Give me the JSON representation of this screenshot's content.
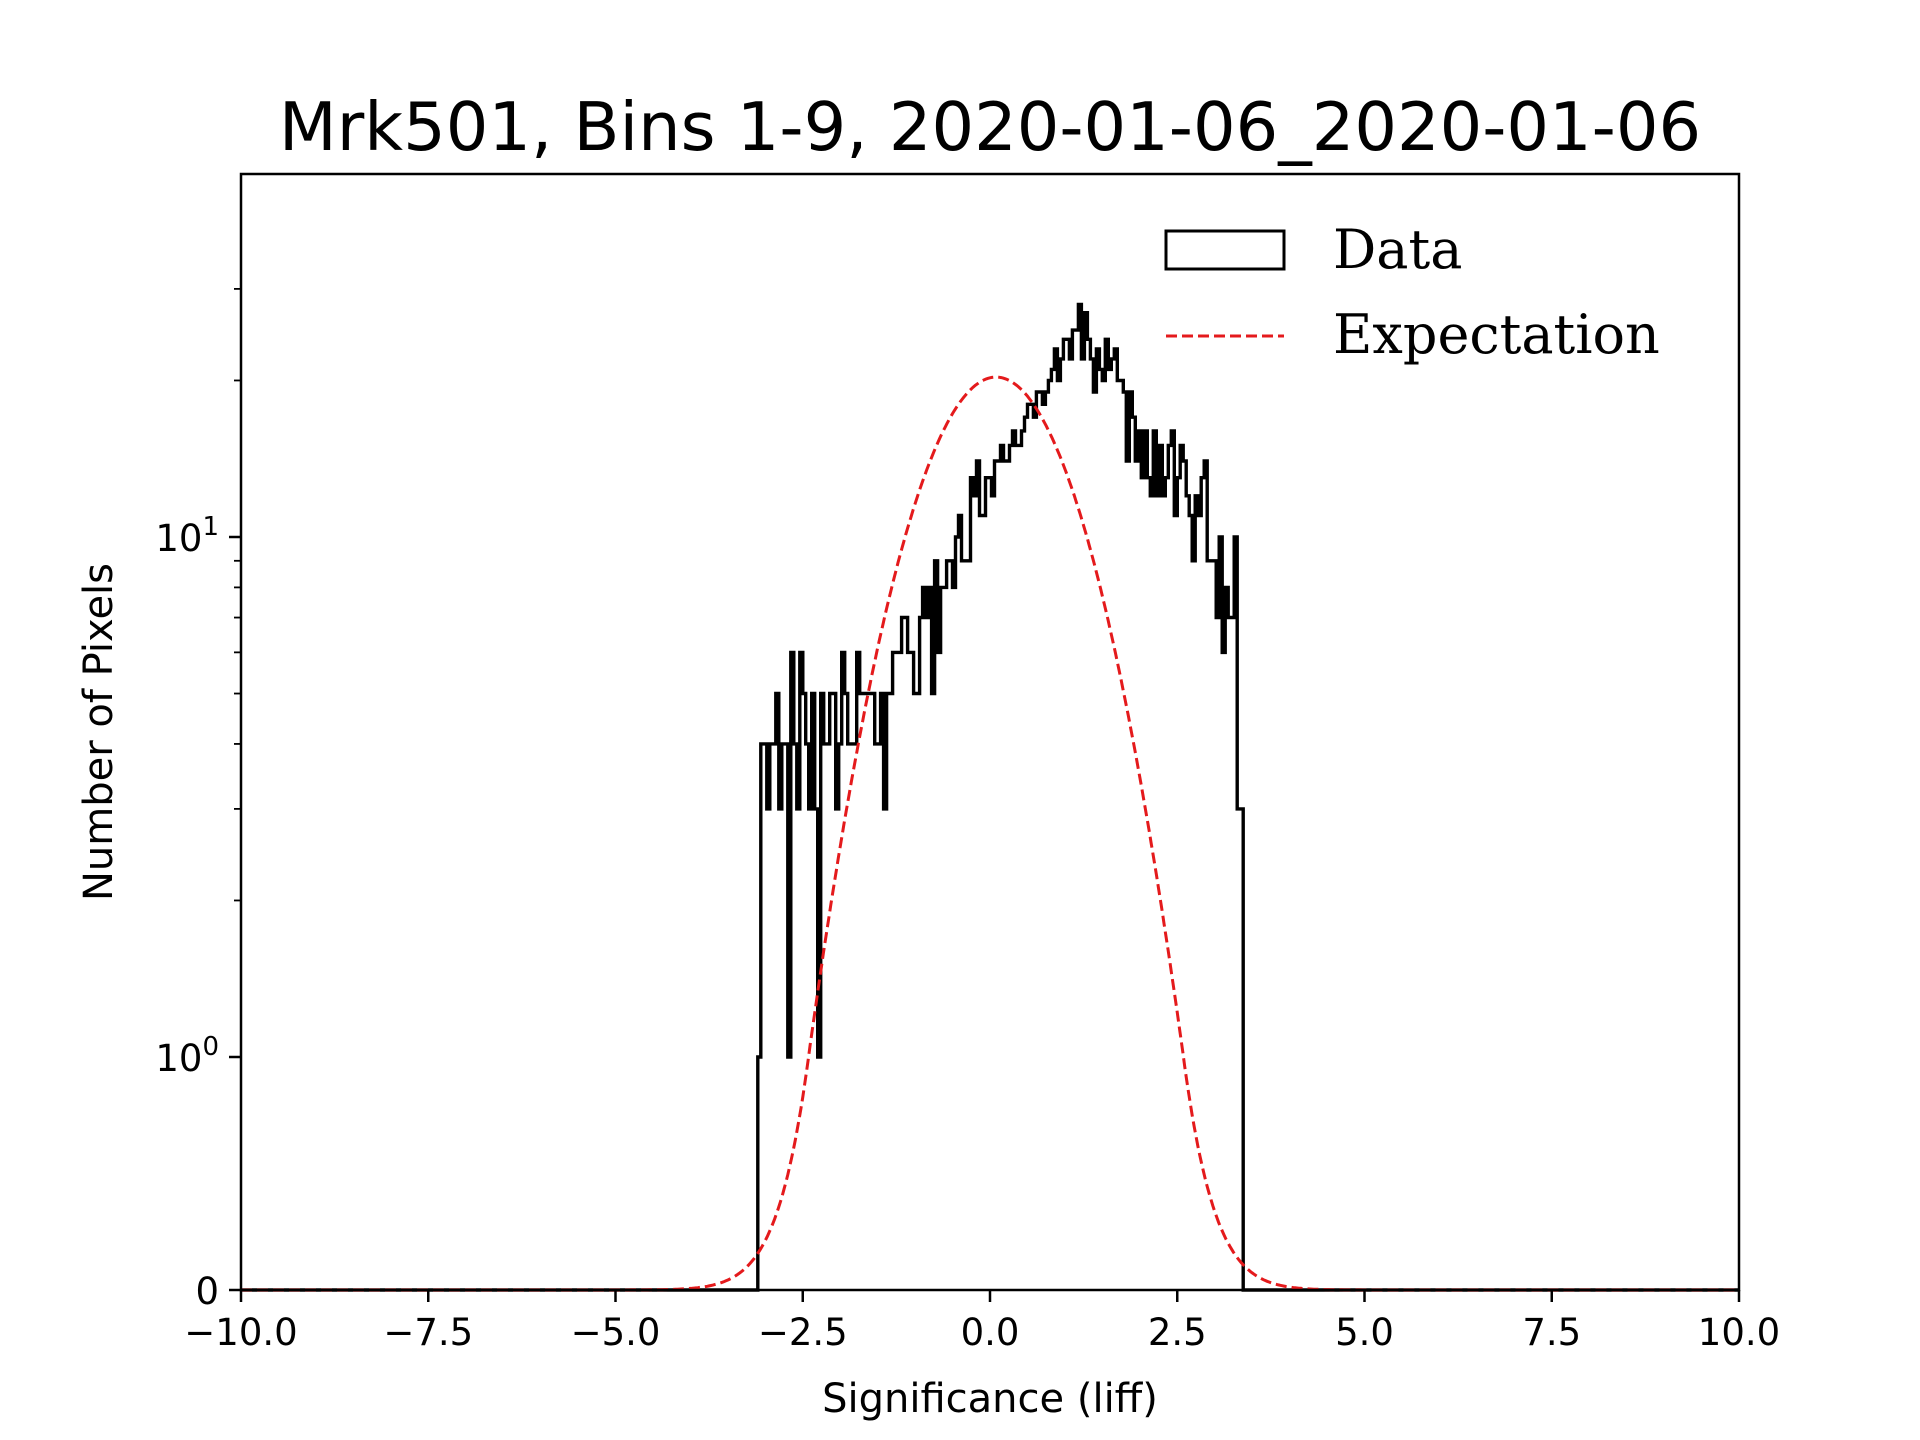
{
  "chart_data": {
    "type": "histogram",
    "title": "Mrk501, Bins 1-9, 2020-01-06_2020-01-06",
    "xlabel": "Significance (liff)",
    "ylabel": "Number of Pixels",
    "xlim": [
      -10.0,
      10.0
    ],
    "yscale": "symlog",
    "xticks": [
      -10.0,
      -7.5,
      -5.0,
      -2.5,
      0.0,
      2.5,
      5.0,
      7.5,
      10.0
    ],
    "xtick_labels": [
      "−10.0",
      "−7.5",
      "−5.0",
      "−2.5",
      "0.0",
      "2.5",
      "5.0",
      "7.5",
      "10.0"
    ],
    "yticks": [
      {
        "value": 0,
        "label": "0",
        "sup": ""
      },
      {
        "value": 1,
        "label": "10",
        "sup": "0"
      },
      {
        "value": 10,
        "label": "10",
        "sup": "1"
      }
    ],
    "legend": {
      "position": "top-right",
      "entries": [
        "Data",
        "Expectation"
      ]
    },
    "series": [
      {
        "name": "Data",
        "style": "step",
        "color": "#000000",
        "bin_edges_start": -3.1,
        "bin_width": 0.04,
        "counts": [
          1,
          4,
          4,
          3,
          4,
          4,
          5,
          3,
          4,
          4,
          1,
          6,
          4,
          3,
          6,
          5,
          4,
          3,
          5,
          3,
          1,
          5,
          4,
          4,
          5,
          5,
          3,
          4,
          6,
          5,
          4,
          4,
          4,
          6,
          5,
          5,
          5,
          5,
          5,
          4,
          4,
          5,
          3,
          5,
          5,
          6,
          6,
          6,
          7,
          7,
          6,
          6,
          5,
          5,
          7,
          8,
          7,
          8,
          5,
          9,
          6,
          8,
          8,
          9,
          9,
          8,
          10,
          11,
          9,
          9,
          9,
          13,
          12,
          14,
          11,
          11,
          13,
          13,
          12,
          14,
          14,
          15,
          14,
          14,
          15,
          16,
          15,
          15,
          16,
          17,
          18,
          18,
          17,
          19,
          19,
          18,
          19,
          20,
          21,
          23,
          20,
          22,
          24,
          24,
          22,
          25,
          25,
          28,
          22,
          27,
          24,
          22,
          19,
          23,
          21,
          20,
          24,
          21,
          22,
          23,
          20,
          20,
          19,
          14,
          19,
          17,
          14,
          16,
          13,
          16,
          13,
          12,
          16,
          12,
          15,
          12,
          13,
          15,
          16,
          11,
          13,
          15,
          14,
          12,
          11,
          9,
          12,
          11,
          13,
          14,
          9,
          9,
          9,
          7,
          10,
          6,
          8,
          7,
          7,
          10,
          3,
          3
        ]
      },
      {
        "name": "Expectation",
        "style": "dashed",
        "color": "#e41a1c",
        "model": "gaussian",
        "amplitude": 20.3,
        "mean": 0.08,
        "sigma": 1.02
      }
    ]
  }
}
